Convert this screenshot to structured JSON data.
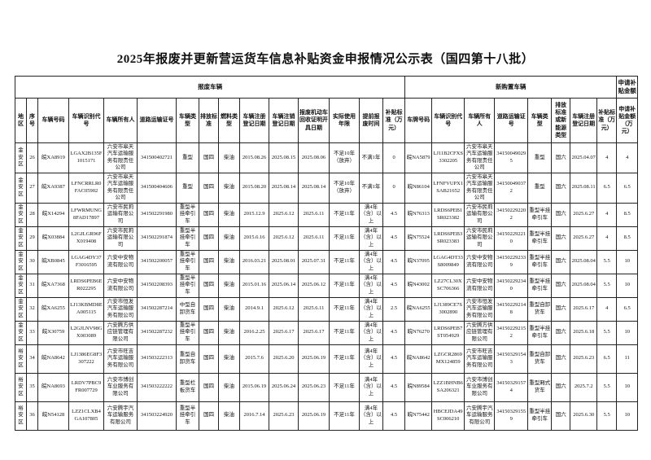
{
  "title": "2025年报废并更新营运货车信息补贴资金申报情况公示表（国四第十八批）",
  "table": {
    "group_headers": {
      "scrapped": "报废车辆",
      "new": "新购置车辆",
      "subsidy": "申请补贴金额"
    },
    "columns": [
      "地区",
      "序号",
      "车辆号码",
      "车辆识别代号",
      "车辆所有人",
      "道路运输证号",
      "车辆类型",
      "排放标准",
      "燃料类型",
      "车辆注册登记日期",
      "车辆注销登记日期",
      "报废机动车回收证明开具日期",
      "实际使用年限",
      "提前报废时间",
      "补贴标准（万元）",
      "车牌号码",
      "车辆识别代号",
      "车辆所有人",
      "道路运输证号",
      "车辆类型",
      "排放标准或新能源类型",
      "车辆注册登记日期",
      "补贴标准（万元）",
      "申请补贴金额（万元）"
    ],
    "rows": [
      [
        "金安区",
        "26",
        "皖XA8919",
        "LGAX2B135F1015171",
        "六安市皋天汽车运输服务有限责任公司",
        "341500402721",
        "重型",
        "国四",
        "柴油",
        "2015.08.26",
        "2025.08.15",
        "2025.08.06",
        "不足10年（放弃）",
        "不满1年",
        "0",
        "皖NA5879",
        "LJ11B2CFXS3302205",
        "六安市皋天汽车运输服务有限责任公司",
        "341500490295",
        "重型",
        "国六",
        "2025.04.07",
        "4",
        "4"
      ],
      [
        "金安区",
        "27",
        "皖XA9387",
        "LFNCRRLR0FAC05902",
        "六安市皋天汽车运输服务有限责任公司",
        "341500404606",
        "重型",
        "国四",
        "柴油",
        "2015.08.20",
        "2025.08.14",
        "2025.08.14",
        "不足10年（放弃）",
        "不满1年",
        "0",
        "皖N86104",
        "LFNFVUPX1SAB21652",
        "六安市皋天汽车运输服务有限责任公司",
        "341500490372",
        "重型",
        "国六",
        "2025.08.11",
        "6.5",
        "6.5"
      ],
      [
        "金安区",
        "28",
        "皖X14294",
        "LFWRMUNG8FAD17897",
        "六安市民莉运输有限公司",
        "341502291980",
        "重型半挂牵引车",
        "国四",
        "柴油",
        "2015.12.9",
        "2025.6.12",
        "2025.6.11",
        "不足11年",
        "满4年（含）以上",
        "4.5",
        "皖N76313",
        "LRDS6PEB1SR023382",
        "六安市民莉运输有限公司",
        "341502292202",
        "重型半挂牵引车",
        "国六",
        "2025.6.27",
        "4",
        "8.5"
      ],
      [
        "金安区",
        "29",
        "皖X03884",
        "L2GJLGR96FX019408",
        "六安市民莉运输有限公司",
        "341502291874",
        "重型半挂牵引车",
        "国四",
        "柴油",
        "2015.6.16",
        "2025.6.12",
        "2025.6.11",
        "不足11年",
        "满4年（含）以上",
        "4.5",
        "皖N75524",
        "LRDS6PEB3SR023383",
        "六安市民莉运输有限公司",
        "341502292210",
        "重型半挂牵引车",
        "国六",
        "2025.6.27",
        "4",
        "8.5"
      ],
      [
        "金安区",
        "30",
        "皖XB0845",
        "LGAG4DY37F3016595",
        "六安中安物流有限公司",
        "341502200057",
        "重型半挂牵引车",
        "国四",
        "柴油",
        "2016.03.21",
        "2025.08.01",
        "2025.07.31",
        "不足11年",
        "满4年（含）以上",
        "4.5",
        "皖N37095",
        "LGAG4DT33S8009849",
        "六安中安物流有限公司",
        "341502292339",
        "重型半挂牵引车",
        "国六",
        "2025.08.04",
        "5.5",
        "10"
      ],
      [
        "金安区",
        "31",
        "皖XA7368",
        "LRDS6PEB6ER022295",
        "六安中安物流有限公司",
        "341502208393",
        "重型半挂牵引车",
        "国四",
        "柴油",
        "2015.01.16",
        "2025.06.14",
        "2025.06.12",
        "不足11年",
        "满4年（含）以上",
        "4.5",
        "皖N43002",
        "LZ27CL30XSC706366",
        "六安中安物流有限公司",
        "341502292340",
        "重型半挂牵引车",
        "国六",
        "2025.08.04",
        "5.5",
        "10"
      ],
      [
        "金安区",
        "32",
        "皖XA6255",
        "LJ13KBMD8EA005115",
        "六安市恒发汽车运输服务有限公司",
        "341502287214",
        "中型自卸货车",
        "国四",
        "柴油",
        "2014.9.1",
        "2025.6.12",
        "2025.6.11",
        "不足11年",
        "满4年（含）以上",
        "2.5",
        "皖NA6255",
        "LJ1389CE7S3002890",
        "六安市恒发汽车运输服务有限公司",
        "341502292148",
        "重型自卸货车",
        "国六",
        "2025.6.17",
        "4",
        "6.5"
      ],
      [
        "金安区",
        "33",
        "皖X30759",
        "L2GJLNV98GX003089",
        "六安腾方供应链管理有限公司",
        "341502287232",
        "重型半挂牵引车",
        "国四",
        "柴油",
        "2016.2.25",
        "2025.6.17",
        "2025.6.17",
        "不足11年",
        "满4年（含）以上",
        "4.5",
        "皖N76270",
        "LRDS6PEB7ST054929",
        "六安腾方供应链管理有限公司",
        "341502292152",
        "重型半挂牵引车",
        "国六",
        "2025.6.18",
        "5.5",
        "10"
      ],
      [
        "裕安区",
        "34",
        "皖NA8642",
        "LJ1386EG8F3307222",
        "六安市旺吉汽车运输服务有限公司",
        "341503222313",
        "重型自卸货车",
        "国四",
        "柴油",
        "2015.7.6",
        "2025.6.20",
        "2025.06.19",
        "不足11年",
        "满4年（含）以上",
        "4.5",
        "皖NA8642",
        "LZGCR2869MX124859",
        "六安市旺吉汽车运输服务有限公司",
        "341503291543",
        "重型自卸货车",
        "国六",
        "2025.6.23",
        "6.5",
        "11"
      ],
      [
        "裕安区",
        "35",
        "皖NA8693",
        "LRDV7PBC9FR007729",
        "六安市博创车业服务有限公司",
        "341503222222",
        "重型栏板货车",
        "国四",
        "柴油",
        "2015.06.19",
        "2025.06.24",
        "2025.06.23",
        "不足11年",
        "满4年（含）以上",
        "4.5",
        "皖N89584",
        "LZZ1BHNB6SA206321",
        "六安市博创车业服务有限公司",
        "341503291574",
        "重型厢式货车",
        "国六",
        "2025.7.2",
        "5.5",
        "10"
      ],
      [
        "裕安区",
        "36",
        "皖N54128",
        "LZZ1CLXB4GA107805",
        "六安腾宇汽车运输服务有限公司",
        "341503224920",
        "重型半挂牵引车",
        "国四",
        "柴油",
        "2016.7.14",
        "2025.6.23",
        "2025.06.19",
        "不足11年",
        "满4年（含）以上",
        "4.5",
        "皖N75442",
        "HBCEJDA49SC006210",
        "六安腾宇汽车运输服务有限公司",
        "341503291559",
        "重型半挂牵引车",
        "国六",
        "2025.6.30",
        "5.5",
        "10"
      ]
    ]
  }
}
